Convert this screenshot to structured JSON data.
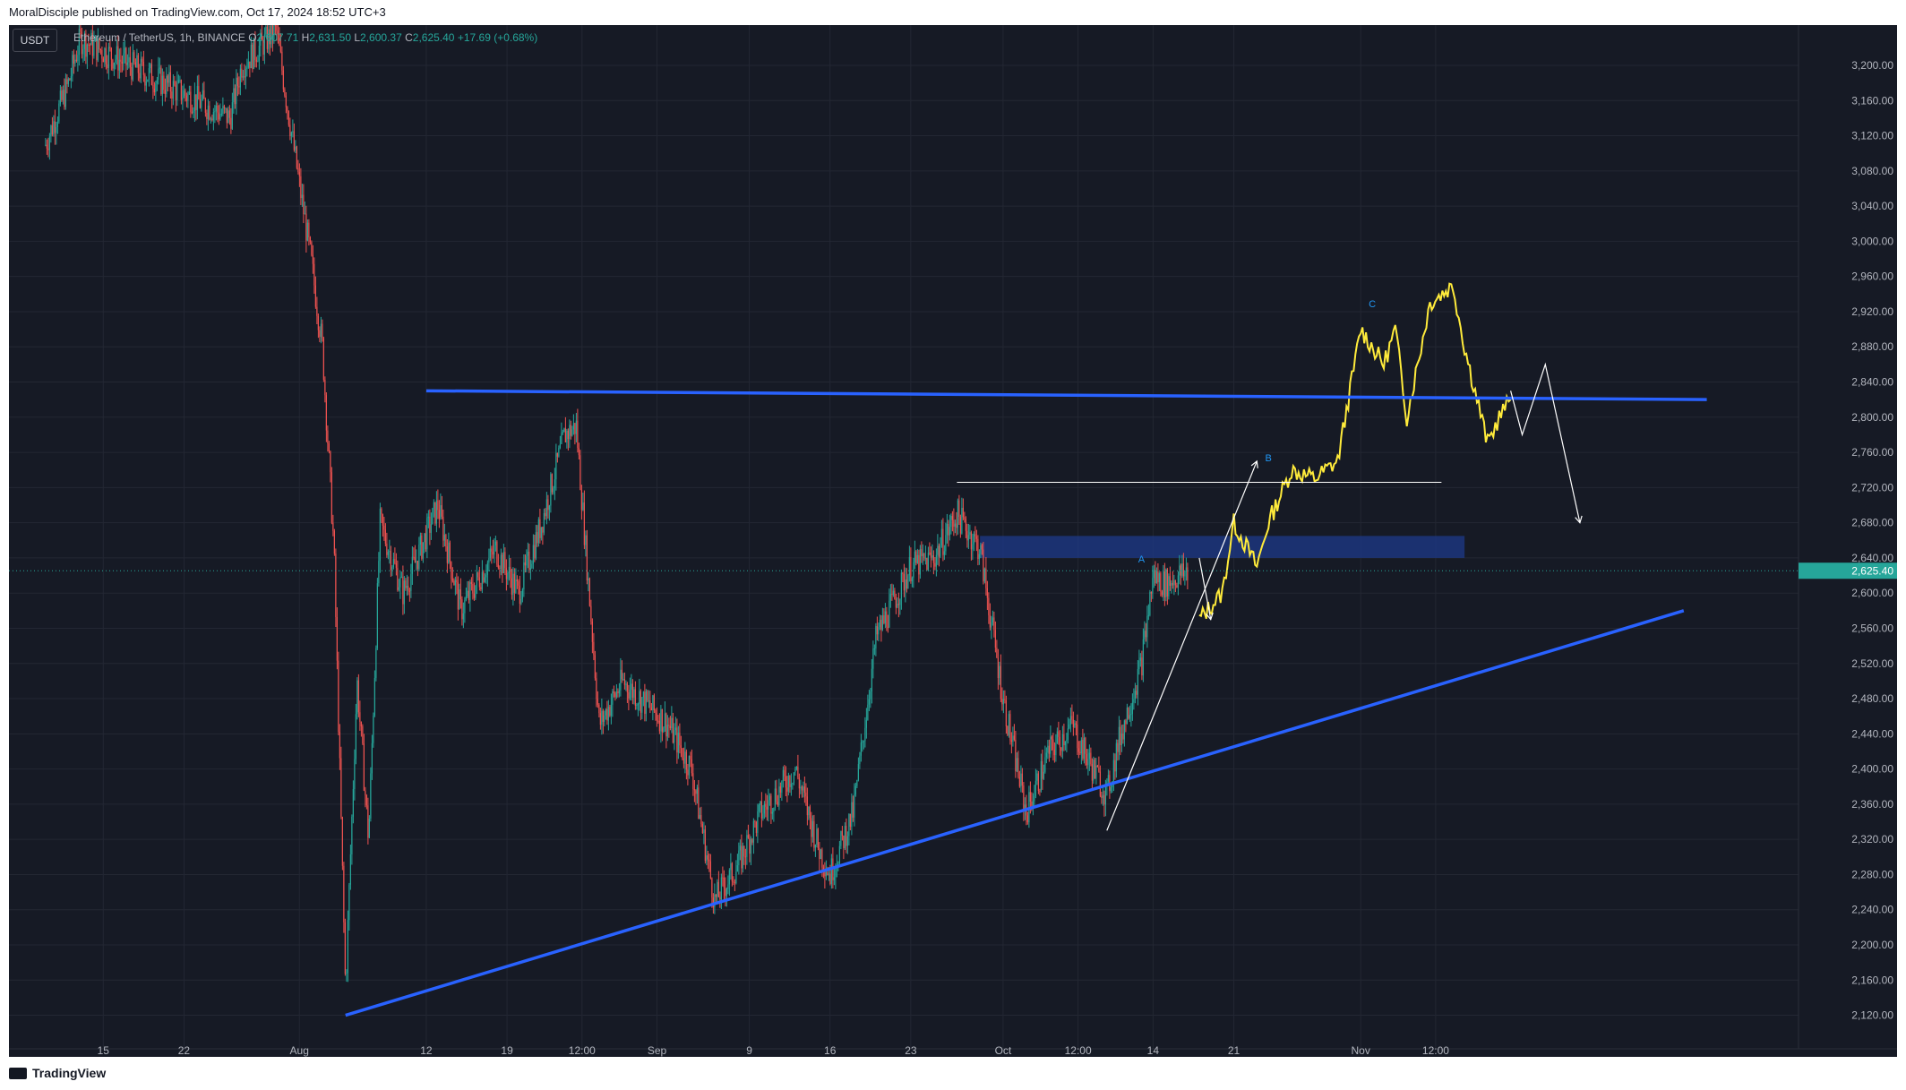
{
  "header": {
    "published": "MoralDisciple published on TradingView.com, Oct 17, 2024 18:52 UTC+3"
  },
  "legend": {
    "symbol": "Ethereum / TetherUS, 1h, BINANCE",
    "o_label": "O",
    "o_value": "2,607.71",
    "h_label": "H",
    "h_value": "2,631.50",
    "l_label": "L",
    "l_value": "2,600.37",
    "c_label": "C",
    "c_value": "2,625.40",
    "change": "+17.69 (+0.68%)"
  },
  "currency_button": "USDT",
  "footer": {
    "brand": "TradingView"
  },
  "colors": {
    "background": "#161a25",
    "grid": "#232733",
    "up": "#26a69a",
    "down": "#ef5350",
    "trendline": "#2962ff",
    "projection": "#ffeb3b",
    "zone": "#1e3a8a",
    "wave_label": "#2196f3",
    "path": "#ffffff"
  },
  "chart_data": {
    "type": "candlestick",
    "symbol": "Ethereum / TetherUS",
    "interval": "1h",
    "exchange": "BINANCE",
    "current_price": "2,625.40",
    "y_axis": {
      "range": [
        2100,
        3230
      ],
      "ticks": [
        "3,200.00",
        "3,160.00",
        "3,120.00",
        "3,080.00",
        "3,040.00",
        "3,000.00",
        "2,960.00",
        "2,920.00",
        "2,880.00",
        "2,840.00",
        "2,800.00",
        "2,760.00",
        "2,720.00",
        "2,680.00",
        "2,640.00",
        "2,600.00",
        "2,560.00",
        "2,520.00",
        "2,480.00",
        "2,440.00",
        "2,400.00",
        "2,360.00",
        "2,320.00",
        "2,280.00",
        "2,240.00",
        "2,200.00",
        "2,160.00",
        "2,120.00"
      ],
      "tick_values": [
        3200,
        3160,
        3120,
        3080,
        3040,
        3000,
        2960,
        2920,
        2880,
        2840,
        2800,
        2760,
        2720,
        2680,
        2640,
        2600,
        2560,
        2520,
        2480,
        2440,
        2400,
        2360,
        2320,
        2280,
        2240,
        2200,
        2160,
        2120
      ]
    },
    "x_axis": {
      "range": [
        "2024-07-09",
        "2024-12-01"
      ],
      "ticks": [
        {
          "label": "15",
          "date": "2024-07-15"
        },
        {
          "label": "22",
          "date": "2024-07-22"
        },
        {
          "label": "Aug",
          "date": "2024-08-01"
        },
        {
          "label": "12",
          "date": "2024-08-12"
        },
        {
          "label": "19",
          "date": "2024-08-19"
        },
        {
          "label": "12:00",
          "date": "2024-08-25T12:00"
        },
        {
          "label": "Sep",
          "date": "2024-09-01"
        },
        {
          "label": "9",
          "date": "2024-09-09"
        },
        {
          "label": "16",
          "date": "2024-09-16"
        },
        {
          "label": "23",
          "date": "2024-09-23"
        },
        {
          "label": "Oct",
          "date": "2024-10-01"
        },
        {
          "label": "12:00",
          "date": "2024-10-07T12:00"
        },
        {
          "label": "14",
          "date": "2024-10-14"
        },
        {
          "label": "21",
          "date": "2024-10-21"
        },
        {
          "label": "Nov",
          "date": "2024-11-01"
        },
        {
          "label": "12:00",
          "date": "2024-11-07T12:00"
        }
      ]
    },
    "price_path": [
      [
        "2024-07-10",
        3110
      ],
      [
        "2024-07-12",
        3180
      ],
      [
        "2024-07-13",
        3230
      ],
      [
        "2024-07-26",
        3140
      ],
      [
        "2024-07-27",
        3200
      ],
      [
        "2024-07-30",
        3240
      ],
      [
        "2024-07-31",
        3150
      ],
      [
        "2024-08-02",
        2980
      ],
      [
        "2024-08-03",
        2880
      ],
      [
        "2024-08-04",
        2650
      ],
      [
        "2024-08-05",
        2150
      ],
      [
        "2024-08-06",
        2500
      ],
      [
        "2024-08-07",
        2320
      ],
      [
        "2024-08-08",
        2680
      ],
      [
        "2024-08-10",
        2600
      ],
      [
        "2024-08-13",
        2700
      ],
      [
        "2024-08-15",
        2580
      ],
      [
        "2024-08-18",
        2650
      ],
      [
        "2024-08-20",
        2600
      ],
      [
        "2024-08-22",
        2680
      ],
      [
        "2024-08-24",
        2780
      ],
      [
        "2024-08-25",
        2790
      ],
      [
        "2024-08-27",
        2450
      ],
      [
        "2024-08-29",
        2500
      ],
      [
        "2024-09-02",
        2450
      ],
      [
        "2024-09-04",
        2400
      ],
      [
        "2024-09-06",
        2250
      ],
      [
        "2024-09-08",
        2290
      ],
      [
        "2024-09-10",
        2350
      ],
      [
        "2024-09-13",
        2400
      ],
      [
        "2024-09-15",
        2310
      ],
      [
        "2024-09-16",
        2280
      ],
      [
        "2024-09-18",
        2350
      ],
      [
        "2024-09-20",
        2550
      ],
      [
        "2024-09-23",
        2630
      ],
      [
        "2024-09-25",
        2640
      ],
      [
        "2024-09-27",
        2690
      ],
      [
        "2024-09-29",
        2650
      ],
      [
        "2024-10-01",
        2480
      ],
      [
        "2024-10-03",
        2350
      ],
      [
        "2024-10-05",
        2420
      ],
      [
        "2024-10-07",
        2450
      ],
      [
        "2024-10-08",
        2420
      ],
      [
        "2024-10-10",
        2370
      ],
      [
        "2024-10-11",
        2430
      ],
      [
        "2024-10-13",
        2520
      ],
      [
        "2024-10-14",
        2620
      ],
      [
        "2024-10-15",
        2610
      ],
      [
        "2024-10-17",
        2625
      ]
    ],
    "projection_path": [
      [
        "2024-10-18",
        2570
      ],
      [
        "2024-10-20",
        2600
      ],
      [
        "2024-10-21",
        2680
      ],
      [
        "2024-10-23",
        2630
      ],
      [
        "2024-10-24",
        2680
      ],
      [
        "2024-10-26",
        2740
      ],
      [
        "2024-10-28",
        2730
      ],
      [
        "2024-10-30",
        2750
      ],
      [
        "2024-11-01",
        2900
      ],
      [
        "2024-11-03",
        2860
      ],
      [
        "2024-11-04",
        2900
      ],
      [
        "2024-11-05",
        2800
      ],
      [
        "2024-11-07",
        2930
      ],
      [
        "2024-11-09",
        2950
      ],
      [
        "2024-11-10",
        2880
      ],
      [
        "2024-11-12",
        2770
      ],
      [
        "2024-11-13",
        2800
      ],
      [
        "2024-11-14",
        2820
      ]
    ],
    "annotations": {
      "trendlines": [
        {
          "from": [
            "2024-08-05",
            2120
          ],
          "to": [
            "2024-11-29",
            2580
          ]
        },
        {
          "from": [
            "2024-08-12",
            2830
          ],
          "to": [
            "2024-12-01",
            2820
          ]
        }
      ],
      "horizontal_line": {
        "from": "2024-09-27",
        "to": "2024-11-08",
        "price": 2726
      },
      "zone": {
        "from": "2024-09-29",
        "to": "2024-11-10",
        "top": 2665,
        "bottom": 2640
      },
      "wave_labels": [
        {
          "label": "A",
          "at": [
            "2024-10-13",
            2635
          ]
        },
        {
          "label": "B",
          "at": [
            "2024-10-24",
            2750
          ]
        },
        {
          "label": "C",
          "at": [
            "2024-11-02",
            2925
          ]
        }
      ],
      "drawn_paths": [
        [
          [
            "2024-10-10",
            2330
          ],
          [
            "2024-10-23",
            2750
          ]
        ],
        [
          [
            "2024-10-18",
            2640
          ],
          [
            "2024-10-19",
            2570
          ]
        ],
        [
          [
            "2024-11-14",
            2830
          ],
          [
            "2024-11-15",
            2780
          ],
          [
            "2024-11-17",
            2860
          ],
          [
            "2024-11-20",
            2680
          ]
        ]
      ]
    }
  }
}
